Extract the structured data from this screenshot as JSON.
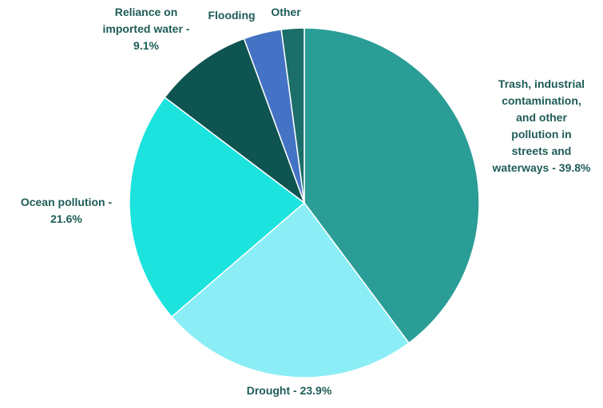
{
  "chart_data": {
    "type": "pie",
    "title": "",
    "start_angle_deg": 0,
    "direction": "clockwise",
    "label_color": "#1e5c57",
    "slice_border_color": "#ffffff",
    "slices": [
      {
        "label": "Trash, industrial contamination, and other pollution in streets and waterways",
        "value": 39.8,
        "display": [
          "Trash, industrial",
          "contamination,",
          "and other",
          "pollution in",
          "streets and",
          "waterways - 39.8%"
        ],
        "color": "#2a9d96"
      },
      {
        "label": "Drought",
        "value": 23.9,
        "display": [
          "Drought - 23.9%"
        ],
        "color": "#8beef6"
      },
      {
        "label": "Ocean pollution",
        "value": 21.6,
        "display": [
          "Ocean pollution -",
          "21.6%"
        ],
        "color": "#1ce3de"
      },
      {
        "label": "Reliance on imported water",
        "value": 9.1,
        "display": [
          "Reliance on",
          "imported water -",
          "9.1%"
        ],
        "color": "#0e5450"
      },
      {
        "label": "Flooding",
        "value": 3.5,
        "display": [
          "Flooding"
        ],
        "color": "#4472c4"
      },
      {
        "label": "Other",
        "value": 2.1,
        "display": [
          "Other"
        ],
        "color": "#1b6e69"
      }
    ]
  }
}
